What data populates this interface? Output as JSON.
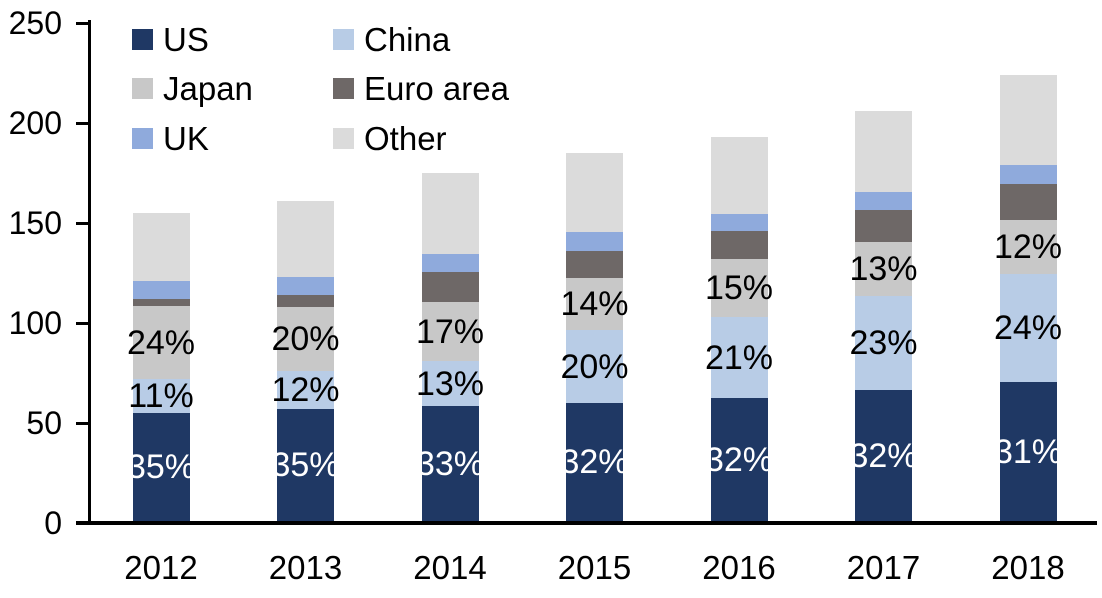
{
  "chart_data": {
    "type": "bar",
    "stacked": true,
    "title": "",
    "xlabel": "",
    "ylabel": "",
    "categories": [
      "2012",
      "2013",
      "2014",
      "2015",
      "2016",
      "2017",
      "2018"
    ],
    "series": [
      {
        "name": "US",
        "color": "#1F3864",
        "values": [
          54,
          56,
          57.5,
          59,
          61.5,
          65.5,
          69.5
        ],
        "labels": [
          "35%",
          "35%",
          "33%",
          "32%",
          "32%",
          "32%",
          "31%"
        ],
        "label_color": "#FFFFFF"
      },
      {
        "name": "China",
        "color": "#B8CCE6",
        "values": [
          17,
          19,
          22.5,
          36.5,
          40.5,
          47,
          54
        ],
        "labels": [
          "11%",
          "12%",
          "13%",
          "20%",
          "21%",
          "23%",
          "24%"
        ],
        "label_color": "#000000"
      },
      {
        "name": "Japan",
        "color": "#C8C8C8",
        "values": [
          36.5,
          32,
          29.5,
          26,
          29,
          27,
          27
        ],
        "labels": [
          "24%",
          "20%",
          "17%",
          "14%",
          "15%",
          "13%",
          "12%"
        ],
        "label_color": "#000000"
      },
      {
        "name": "Euro area",
        "color": "#6E6867",
        "values": [
          3.5,
          6,
          15,
          13.5,
          14,
          16,
          18
        ],
        "labels": null
      },
      {
        "name": "UK",
        "color": "#8FAADC",
        "values": [
          9,
          9,
          9,
          9.5,
          8.5,
          9,
          9.5
        ],
        "labels": null
      },
      {
        "name": "Other",
        "color": "#DBDBDB",
        "values": [
          34,
          38,
          40.5,
          39.5,
          38.5,
          40.5,
          45
        ],
        "labels": null
      }
    ],
    "totals": [
      154,
      160,
      174,
      184,
      192,
      205,
      223
    ],
    "ylim": [
      0,
      250
    ],
    "yticks": [
      0,
      50,
      100,
      150,
      200,
      250
    ],
    "grid": false,
    "axis_color": "#000000",
    "legend_position": "top-left",
    "legend_rows": [
      [
        "US",
        "China"
      ],
      [
        "Japan",
        "Euro area"
      ],
      [
        "UK",
        "Other"
      ]
    ]
  }
}
